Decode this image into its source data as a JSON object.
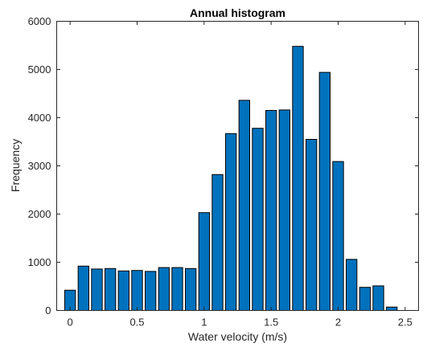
{
  "chart_data": {
    "type": "bar",
    "title": "Annual histogram",
    "xlabel": "Water velocity (m/s)",
    "ylabel": "Frequency",
    "xlim": [
      -0.1,
      2.6
    ],
    "ylim": [
      0,
      6000
    ],
    "xticks": [
      0,
      0.5,
      1,
      1.5,
      2,
      2.5
    ],
    "xtick_labels": [
      "0",
      "0.5",
      "1",
      "1.5",
      "2",
      "2.5"
    ],
    "yticks": [
      0,
      1000,
      2000,
      3000,
      4000,
      5000,
      6000
    ],
    "ytick_labels": [
      "0",
      "1000",
      "2000",
      "3000",
      "4000",
      "5000",
      "6000"
    ],
    "bin_width": 0.1,
    "bar_color": "#0072BD",
    "edge_color": "#000000",
    "x": [
      0,
      0.1,
      0.2,
      0.3,
      0.4,
      0.5,
      0.6,
      0.7,
      0.8,
      0.9,
      1.0,
      1.1,
      1.2,
      1.3,
      1.4,
      1.5,
      1.6,
      1.7,
      1.8,
      1.9,
      2.0,
      2.1,
      2.2,
      2.3,
      2.4
    ],
    "values": [
      420,
      920,
      860,
      870,
      820,
      830,
      810,
      890,
      890,
      870,
      2030,
      2820,
      3670,
      4360,
      3780,
      4150,
      4160,
      5480,
      3550,
      4940,
      3090,
      1060,
      480,
      510,
      70
    ],
    "grid": false
  }
}
